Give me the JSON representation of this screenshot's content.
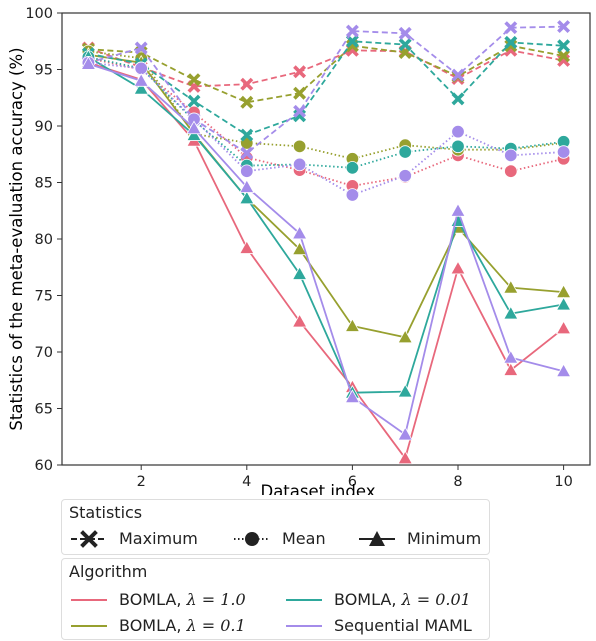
{
  "chart_data": {
    "type": "line",
    "ylabel": "Statistics of the meta-evaluation accuracy (%)",
    "xlabel": "Dataset index",
    "xlim": [
      0.5,
      10.5
    ],
    "ylim": [
      60,
      100
    ],
    "xticks": [
      "2",
      "4",
      "6",
      "8",
      "10"
    ],
    "yticks": [
      "60",
      "65",
      "70",
      "75",
      "80",
      "85",
      "90",
      "95",
      "100"
    ],
    "grid": false,
    "x": [
      1,
      2,
      3,
      4,
      5,
      6,
      7,
      8,
      9,
      10
    ],
    "series": [
      {
        "name": "BOMLA, λ = 1.0",
        "color": "#e8687c",
        "statistic": "Maximum",
        "values": [
          96.9,
          95.2,
          93.5,
          93.7,
          94.8,
          96.7,
          96.6,
          94.2,
          96.7,
          95.8
        ]
      },
      {
        "name": "BOMLA, λ = 1.0",
        "color": "#e8687c",
        "statistic": "Mean",
        "values": [
          96.0,
          95.0,
          91.2,
          87.2,
          86.1,
          84.7,
          85.5,
          87.4,
          86.0,
          87.1
        ]
      },
      {
        "name": "BOMLA, λ = 1.0",
        "color": "#e8687c",
        "statistic": "Minimum",
        "values": [
          95.6,
          94.1,
          88.7,
          79.2,
          72.7,
          66.9,
          60.6,
          77.4,
          68.4,
          72.1
        ]
      },
      {
        "name": "BOMLA, λ = 0.1",
        "color": "#97a02f",
        "statistic": "Maximum",
        "values": [
          96.8,
          96.5,
          94.1,
          92.1,
          92.9,
          97.1,
          96.5,
          94.4,
          97.1,
          96.2
        ]
      },
      {
        "name": "BOMLA, λ = 0.1",
        "color": "#97a02f",
        "statistic": "Mean",
        "values": [
          96.6,
          96.0,
          89.3,
          88.5,
          88.2,
          87.1,
          88.3,
          87.9,
          87.9,
          88.5
        ]
      },
      {
        "name": "BOMLA, λ = 0.1",
        "color": "#97a02f",
        "statistic": "Minimum",
        "values": [
          96.3,
          95.6,
          89.3,
          83.6,
          79.1,
          72.3,
          71.3,
          81.0,
          75.7,
          75.3
        ]
      },
      {
        "name": "BOMLA, λ = 0.01",
        "color": "#2ea89c",
        "statistic": "Maximum",
        "values": [
          96.4,
          95.5,
          92.2,
          89.2,
          90.9,
          97.5,
          97.2,
          92.4,
          97.4,
          97.1
        ]
      },
      {
        "name": "BOMLA, λ = 0.01",
        "color": "#2ea89c",
        "statistic": "Mean",
        "values": [
          96.1,
          95.1,
          90.5,
          86.5,
          86.6,
          86.3,
          87.7,
          88.2,
          88.0,
          88.6
        ]
      },
      {
        "name": "BOMLA, λ = 0.01",
        "color": "#2ea89c",
        "statistic": "Minimum",
        "values": [
          96.1,
          93.3,
          89.2,
          83.6,
          76.9,
          66.4,
          66.5,
          81.6,
          73.4,
          74.2
        ]
      },
      {
        "name": "Sequential MAML",
        "color": "#a48cea",
        "statistic": "Maximum",
        "values": [
          95.6,
          96.9,
          90.6,
          87.6,
          91.3,
          98.4,
          98.2,
          94.5,
          98.7,
          98.8
        ]
      },
      {
        "name": "Sequential MAML",
        "color": "#a48cea",
        "statistic": "Mean",
        "values": [
          95.6,
          95.1,
          90.6,
          86.0,
          86.6,
          83.9,
          85.6,
          89.5,
          87.4,
          87.7
        ]
      },
      {
        "name": "Sequential MAML",
        "color": "#a48cea",
        "statistic": "Minimum",
        "values": [
          95.5,
          94.0,
          89.8,
          84.6,
          80.5,
          66.0,
          62.7,
          82.5,
          69.5,
          68.3
        ]
      }
    ]
  },
  "legend_statistics": {
    "title": "Statistics",
    "items": [
      {
        "label": "Maximum",
        "dash": "dashed",
        "marker": "x"
      },
      {
        "label": "Mean",
        "dash": "dotted",
        "marker": "o"
      },
      {
        "label": "Minimum",
        "dash": "solid",
        "marker": "^"
      }
    ]
  },
  "legend_algorithm": {
    "title": "Algorithm",
    "items": [
      {
        "prefix": "BOMLA, ",
        "lambda": "λ = 1.0",
        "color": "#e8687c"
      },
      {
        "prefix": "BOMLA, ",
        "lambda": "λ = 0.01",
        "color": "#2ea89c"
      },
      {
        "prefix": "BOMLA, ",
        "lambda": "λ = 0.1",
        "color": "#97a02f"
      },
      {
        "prefix": "",
        "lambda": "",
        "label": "Sequential MAML",
        "color": "#a48cea"
      }
    ]
  }
}
